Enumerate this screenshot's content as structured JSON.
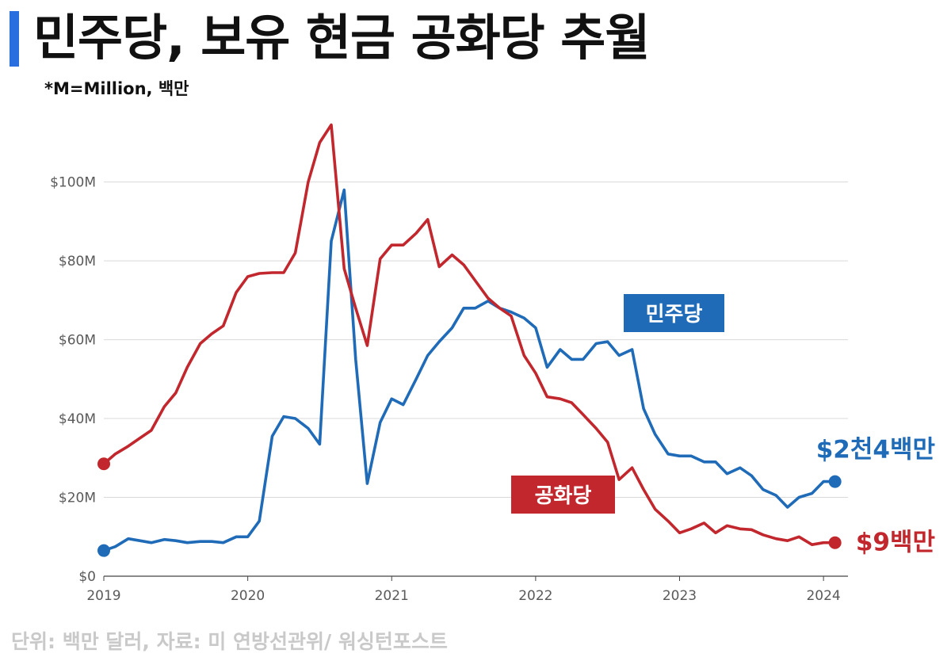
{
  "header": {
    "title": "민주당, 보유 현금 공화당 추월",
    "subtitle": "*M=Million, 백만"
  },
  "footer": {
    "source": "단위: 백만 달러, 자료: 미 연방선관위/ 워싱턴포스트"
  },
  "chart_data": {
    "type": "line",
    "title": "민주당, 보유 현금 공화당 추월",
    "xlabel": "",
    "ylabel": "",
    "xlim": [
      2019.0,
      2024.17
    ],
    "ylim": [
      0,
      115
    ],
    "x_ticks": [
      {
        "value": 2019,
        "label": "2019"
      },
      {
        "value": 2020,
        "label": "2020"
      },
      {
        "value": 2021,
        "label": "2021"
      },
      {
        "value": 2022,
        "label": "2022"
      },
      {
        "value": 2023,
        "label": "2023"
      },
      {
        "value": 2024,
        "label": "2024"
      }
    ],
    "y_ticks": [
      {
        "value": 0,
        "label": "$0"
      },
      {
        "value": 20,
        "label": "$20M"
      },
      {
        "value": 40,
        "label": "$40M"
      },
      {
        "value": 60,
        "label": "$60M"
      },
      {
        "value": 80,
        "label": "$80M"
      },
      {
        "value": 100,
        "label": "$100M"
      }
    ],
    "grid": true,
    "series": [
      {
        "name": "민주당",
        "color": "#1f6bb8",
        "end_label": "$2천4백만",
        "x": [
          2019.0,
          2019.08,
          2019.17,
          2019.25,
          2019.33,
          2019.42,
          2019.5,
          2019.58,
          2019.67,
          2019.75,
          2019.83,
          2019.92,
          2020.0,
          2020.08,
          2020.17,
          2020.25,
          2020.33,
          2020.42,
          2020.5,
          2020.58,
          2020.67,
          2020.75,
          2020.83,
          2020.92,
          2021.0,
          2021.08,
          2021.17,
          2021.25,
          2021.33,
          2021.42,
          2021.5,
          2021.58,
          2021.67,
          2021.75,
          2021.83,
          2021.92,
          2022.0,
          2022.08,
          2022.17,
          2022.25,
          2022.33,
          2022.42,
          2022.5,
          2022.58,
          2022.67,
          2022.75,
          2022.83,
          2022.92,
          2023.0,
          2023.08,
          2023.17,
          2023.25,
          2023.33,
          2023.42,
          2023.5,
          2023.58,
          2023.67,
          2023.75,
          2023.83,
          2023.92,
          2024.0,
          2024.08
        ],
        "values": [
          6.5,
          7.5,
          9.5,
          9.0,
          8.5,
          9.3,
          9.0,
          8.5,
          8.8,
          8.8,
          8.5,
          10.0,
          10.0,
          14.0,
          35.5,
          40.5,
          40.0,
          37.5,
          33.5,
          85.0,
          98.0,
          55.0,
          23.5,
          39.0,
          45.0,
          43.5,
          50.0,
          56.0,
          59.5,
          63.0,
          68.0,
          68.0,
          69.8,
          68.0,
          67.0,
          65.5,
          63.0,
          53.0,
          57.5,
          55.0,
          55.0,
          59.0,
          59.5,
          56.0,
          57.5,
          42.5,
          36.0,
          31.0,
          30.5,
          30.5,
          29.0,
          29.0,
          26.0,
          27.5,
          25.5,
          22.0,
          20.5,
          17.5,
          20.0,
          21.0,
          24.0,
          24.0
        ]
      },
      {
        "name": "공화당",
        "color": "#c1272d",
        "end_label": "$9백만",
        "x": [
          2019.0,
          2019.08,
          2019.17,
          2019.25,
          2019.33,
          2019.42,
          2019.5,
          2019.58,
          2019.67,
          2019.75,
          2019.83,
          2019.92,
          2020.0,
          2020.08,
          2020.17,
          2020.25,
          2020.33,
          2020.42,
          2020.5,
          2020.58,
          2020.67,
          2020.75,
          2020.83,
          2020.92,
          2021.0,
          2021.08,
          2021.17,
          2021.25,
          2021.33,
          2021.42,
          2021.5,
          2021.58,
          2021.67,
          2021.75,
          2021.83,
          2021.92,
          2022.0,
          2022.08,
          2022.17,
          2022.25,
          2022.33,
          2022.42,
          2022.5,
          2022.58,
          2022.67,
          2022.75,
          2022.83,
          2022.92,
          2023.0,
          2023.08,
          2023.17,
          2023.25,
          2023.33,
          2023.42,
          2023.5,
          2023.58,
          2023.67,
          2023.75,
          2023.83,
          2023.92,
          2024.0,
          2024.08
        ],
        "values": [
          28.5,
          31.0,
          33.0,
          35.0,
          37.0,
          43.0,
          46.5,
          53.0,
          59.0,
          61.5,
          63.5,
          72.0,
          76.0,
          76.8,
          77.0,
          77.0,
          82.0,
          100.0,
          110.0,
          114.5,
          78.0,
          68.0,
          58.5,
          80.5,
          84.0,
          84.0,
          87.0,
          90.5,
          78.5,
          81.5,
          79.0,
          75.0,
          70.5,
          68.0,
          66.0,
          56.0,
          51.5,
          45.5,
          45.0,
          44.0,
          41.0,
          37.5,
          34.0,
          24.5,
          27.5,
          22.0,
          17.0,
          14.0,
          11.0,
          12.0,
          13.5,
          11.0,
          12.8,
          12.0,
          11.8,
          10.5,
          9.5,
          9.0,
          10.0,
          8.0,
          8.5,
          8.5
        ]
      }
    ],
    "annotations": [
      {
        "text": "민주당",
        "series": "민주당",
        "background": "#1f6bb8"
      },
      {
        "text": "공화당",
        "series": "공화당",
        "background": "#c1272d"
      }
    ]
  }
}
